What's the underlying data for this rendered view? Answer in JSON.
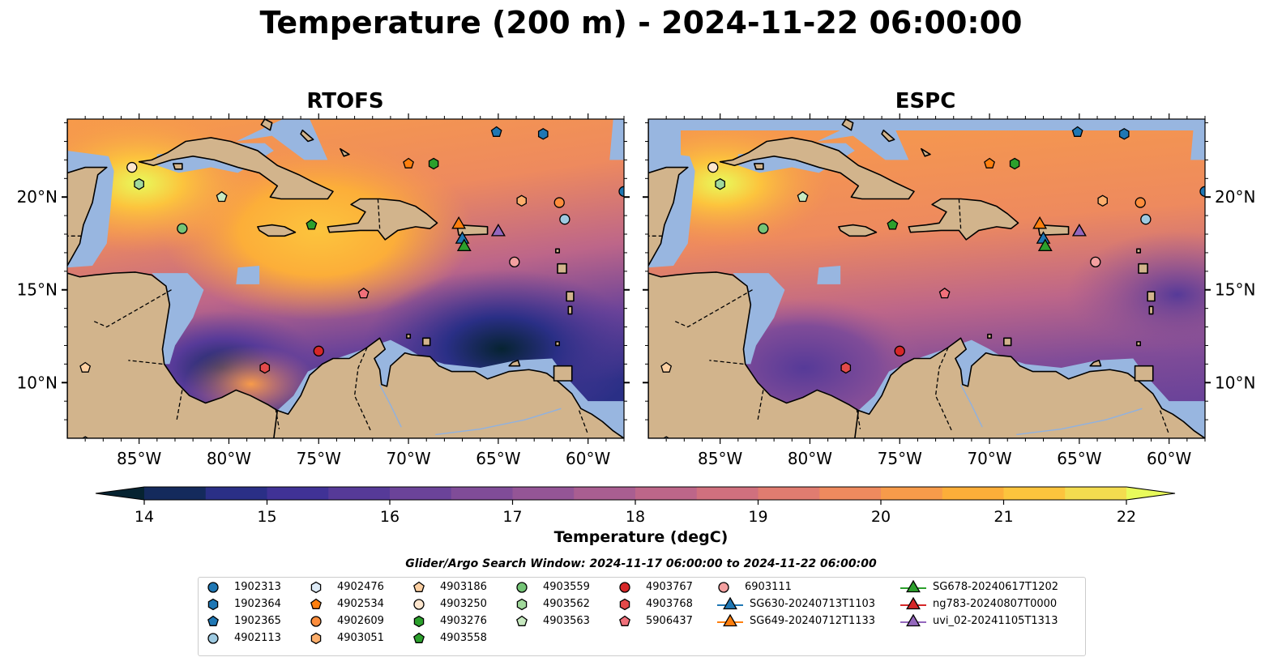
{
  "title": "Temperature (200 m) - 2024-11-22 06:00:00",
  "panels": [
    {
      "title": "RTOFS",
      "ocean_style": "rtofs"
    },
    {
      "title": "ESPC",
      "ocean_style": "espc"
    }
  ],
  "map": {
    "lon_range": [
      -89,
      -58
    ],
    "lat_range": [
      7,
      24.2
    ],
    "lon_ticks": [
      -85,
      -80,
      -75,
      -70,
      -65,
      -60
    ],
    "lon_tick_labels": [
      "85°W",
      "80°W",
      "75°W",
      "70°W",
      "65°W",
      "60°W"
    ],
    "lat_ticks": [
      10,
      15,
      20
    ],
    "lat_tick_labels": [
      "10°N",
      "15°N",
      "20°N"
    ],
    "land_color": "#d2b48c",
    "shallow_color": "#98b6e0"
  },
  "colorbar": {
    "label": "Temperature (degC)",
    "min": 14,
    "max": 22,
    "step": 0.5,
    "ticks": [
      14,
      15,
      16,
      17,
      18,
      19,
      20,
      21,
      22
    ],
    "extend": "both",
    "colormap": "thermal",
    "colors": [
      "#062331",
      "#142a5c",
      "#2a2f86",
      "#403296",
      "#563a98",
      "#6b4399",
      "#804c98",
      "#945596",
      "#a95e91",
      "#bd6689",
      "#d0707e",
      "#e07c70",
      "#ee8a5e",
      "#f79b4a",
      "#fcae39",
      "#fcc43d",
      "#f3dc4f"
    ],
    "over_color": "#e8fa5b"
  },
  "search_window": "Glider/Argo Search Window: 2024-11-17 06:00:00 to 2024-11-22 06:00:00",
  "chart_data": {
    "type": "map",
    "variable": "Temperature (200 m)",
    "units": "degC",
    "time": "2024-11-22 06:00:00",
    "observations": [
      {
        "id": "1902313",
        "kind": "argo",
        "marker": "circle",
        "color": "#1f77b4",
        "lon": -58.0,
        "lat": 20.3
      },
      {
        "id": "1902364",
        "kind": "argo",
        "marker": "hexagon",
        "color": "#1f77b4",
        "lon": -62.5,
        "lat": 23.4
      },
      {
        "id": "1902365",
        "kind": "argo",
        "marker": "pentagon",
        "color": "#1f77b4",
        "lon": -65.1,
        "lat": 23.5
      },
      {
        "id": "4902113",
        "kind": "argo",
        "marker": "circle",
        "color": "#9ecae1",
        "lon": -61.3,
        "lat": 18.8
      },
      {
        "id": "4902476",
        "kind": "argo",
        "marker": "hexagon",
        "color": "#deebf7",
        "lon": -88.0,
        "lat": 6.8
      },
      {
        "id": "4902534",
        "kind": "argo",
        "marker": "pentagon",
        "color": "#ff7f0e",
        "lon": -70.0,
        "lat": 21.8
      },
      {
        "id": "4902609",
        "kind": "argo",
        "marker": "circle",
        "color": "#fd8d3c",
        "lon": -61.6,
        "lat": 19.7
      },
      {
        "id": "4903051",
        "kind": "argo",
        "marker": "hexagon",
        "color": "#fdae6b",
        "lon": -63.7,
        "lat": 19.8
      },
      {
        "id": "4903186",
        "kind": "argo",
        "marker": "pentagon",
        "color": "#fdd0a2",
        "lon": -88.0,
        "lat": 10.8
      },
      {
        "id": "4903250",
        "kind": "argo",
        "marker": "circle",
        "color": "#fee6ce",
        "lon": -85.4,
        "lat": 21.6
      },
      {
        "id": "4903276",
        "kind": "argo",
        "marker": "hexagon",
        "color": "#2ca02c",
        "lon": -68.6,
        "lat": 21.8
      },
      {
        "id": "4903558",
        "kind": "argo",
        "marker": "pentagon",
        "color": "#2ca02c",
        "lon": -75.4,
        "lat": 18.5
      },
      {
        "id": "4903559",
        "kind": "argo",
        "marker": "circle",
        "color": "#74c476",
        "lon": -82.6,
        "lat": 18.3
      },
      {
        "id": "4903562",
        "kind": "argo",
        "marker": "hexagon",
        "color": "#a1d99b",
        "lon": -85.0,
        "lat": 20.7
      },
      {
        "id": "4903563",
        "kind": "argo",
        "marker": "pentagon",
        "color": "#c7e9c0",
        "lon": -80.4,
        "lat": 20.0
      },
      {
        "id": "4903767",
        "kind": "argo",
        "marker": "circle",
        "color": "#d62728",
        "lon": -75.0,
        "lat": 11.7
      },
      {
        "id": "4903768",
        "kind": "argo",
        "marker": "hexagon",
        "color": "#e34a4a",
        "lon": -78.0,
        "lat": 10.8
      },
      {
        "id": "5906437",
        "kind": "argo",
        "marker": "pentagon",
        "color": "#f0707a",
        "lon": -72.5,
        "lat": 14.8
      },
      {
        "id": "6903111",
        "kind": "argo",
        "marker": "circle",
        "color": "#f4a0a0",
        "lon": -64.1,
        "lat": 16.5
      },
      {
        "id": "SG630-20240713T1103",
        "kind": "glider",
        "marker": "triangle",
        "color": "#1f77b4",
        "lon": -67.0,
        "lat": 17.8
      },
      {
        "id": "SG649-20240712T1133",
        "kind": "glider",
        "marker": "triangle",
        "color": "#ff7f0e",
        "lon": -67.2,
        "lat": 18.6
      },
      {
        "id": "SG678-20240617T1202",
        "kind": "glider",
        "marker": "triangle",
        "color": "#2ca02c",
        "lon": -66.9,
        "lat": 17.4
      },
      {
        "id": "ng783-20240807T0000",
        "kind": "glider",
        "marker": "triangle",
        "color": "#d62728",
        "lon": -65.0,
        "lat": 18.2
      },
      {
        "id": "uvi_02-20241105T1313",
        "kind": "glider",
        "marker": "triangle",
        "color": "#9467bd",
        "lon": -65.0,
        "lat": 18.2
      }
    ]
  }
}
